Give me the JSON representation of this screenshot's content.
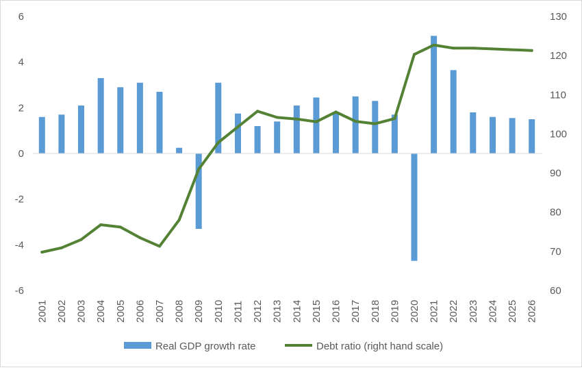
{
  "chart_data": {
    "type": "bar",
    "title": "",
    "xlabel": "",
    "ylabel": "",
    "categories": [
      "2001",
      "2002",
      "2003",
      "2004",
      "2005",
      "2006",
      "2007",
      "2008",
      "2009",
      "2010",
      "2011",
      "2012",
      "2013",
      "2014",
      "2015",
      "2016",
      "2017",
      "2018",
      "2019",
      "2020",
      "2021",
      "2022",
      "2023",
      "2024",
      "2025",
      "2026"
    ],
    "series": [
      {
        "name": "Real GDP growth rate",
        "type": "bar",
        "axis": "left",
        "color": "#5b9bd5",
        "values": [
          1.6,
          1.7,
          2.1,
          3.3,
          2.9,
          3.1,
          2.7,
          0.25,
          -3.3,
          3.1,
          1.75,
          1.2,
          1.4,
          2.1,
          2.45,
          1.8,
          2.5,
          2.3,
          1.7,
          -4.7,
          5.15,
          3.65,
          1.8,
          1.6,
          1.55,
          1.5
        ]
      },
      {
        "name": "Debt ratio (right hand scale)",
        "type": "line",
        "axis": "right",
        "color": "#548235",
        "values": [
          69.8,
          70.9,
          73.0,
          76.8,
          76.2,
          73.5,
          71.3,
          78.0,
          91.0,
          97.8,
          101.8,
          105.8,
          104.2,
          103.8,
          103.1,
          105.6,
          103.2,
          102.6,
          103.9,
          120.3,
          122.7,
          121.9,
          121.9,
          121.7,
          121.5,
          121.3
        ]
      }
    ],
    "ylim_left": [
      -6,
      6
    ],
    "yticks_left": [
      "-6",
      "-4",
      "-2",
      "0",
      "2",
      "4",
      "6"
    ],
    "ylim_right": [
      60,
      130
    ],
    "yticks_right": [
      "60",
      "70",
      "80",
      "90",
      "100",
      "110",
      "120",
      "130"
    ],
    "grid": false,
    "legend_position": "bottom"
  }
}
